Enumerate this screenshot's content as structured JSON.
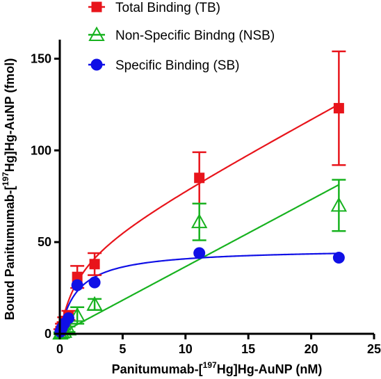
{
  "chart_data": {
    "type": "scatter",
    "title": "",
    "xlabel": {
      "main": "Panitumumab-[",
      "sup": "197",
      "rest": "Hg]Hg-AuNP (nM)"
    },
    "ylabel": {
      "main": "Bound Panitumumab-[",
      "sup": "197",
      "rest": "Hg]Hg-AuNP (fmol)"
    },
    "xlim": [
      0,
      25
    ],
    "ylim": [
      0,
      160
    ],
    "xticks": [
      0,
      5,
      10,
      15,
      20,
      25
    ],
    "yticks": [
      0,
      50,
      100,
      150
    ],
    "x_tick_labels": [
      "0",
      "5",
      "10",
      "15",
      "20",
      "25"
    ],
    "y_tick_labels": [
      "0",
      "50",
      "100",
      "150"
    ],
    "grid": false,
    "legend_position": "top-left",
    "series": [
      {
        "name": "Total Binding (TB)",
        "marker": "square",
        "color": "#e8141b",
        "fit": "saturation-plus-linear",
        "points": [
          {
            "x": 0.05,
            "y": 1.5,
            "err": 1.0
          },
          {
            "x": 0.17,
            "y": 4,
            "err": 1.5
          },
          {
            "x": 0.35,
            "y": 7,
            "err": 2.0
          },
          {
            "x": 0.69,
            "y": 10,
            "err": 2.5
          },
          {
            "x": 1.39,
            "y": 31,
            "err": 6.0
          },
          {
            "x": 2.77,
            "y": 38,
            "err": 6.0
          },
          {
            "x": 11.1,
            "y": 85,
            "err": 14.0
          },
          {
            "x": 22.2,
            "y": 123,
            "err": 31.0
          }
        ]
      },
      {
        "name": "Non-Specific Bindng (NSB)",
        "marker": "triangle-open",
        "color": "#17b21f",
        "fit": "linear",
        "points": [
          {
            "x": 0.05,
            "y": 0.3,
            "err": 0.5
          },
          {
            "x": 0.17,
            "y": 0.8,
            "err": 0.8
          },
          {
            "x": 0.35,
            "y": 1.2,
            "err": 1.0
          },
          {
            "x": 0.69,
            "y": 2.5,
            "err": 1.5
          },
          {
            "x": 1.39,
            "y": 10,
            "err": 4.5
          },
          {
            "x": 2.77,
            "y": 16,
            "err": 3.0
          },
          {
            "x": 11.1,
            "y": 61,
            "err": 10.0
          },
          {
            "x": 22.2,
            "y": 70,
            "err": 14.0
          }
        ]
      },
      {
        "name": "Specific Binding (SB)",
        "marker": "circle",
        "color": "#1010e6",
        "fit": "one-site-saturation",
        "points": [
          {
            "x": 0.05,
            "y": 1.2
          },
          {
            "x": 0.17,
            "y": 3.2
          },
          {
            "x": 0.35,
            "y": 5.5
          },
          {
            "x": 0.69,
            "y": 8.5
          },
          {
            "x": 1.39,
            "y": 26.5
          },
          {
            "x": 2.77,
            "y": 28
          },
          {
            "x": 11.1,
            "y": 44
          },
          {
            "x": 22.2,
            "y": 41.5
          }
        ]
      }
    ],
    "fits": {
      "SB": {
        "Bmax": 46.6,
        "Kd": 1.4
      },
      "NSB": {
        "slope": 3.66
      },
      "TB": {
        "Bmax": 46.6,
        "Kd": 1.4,
        "slope": 3.66
      }
    }
  }
}
